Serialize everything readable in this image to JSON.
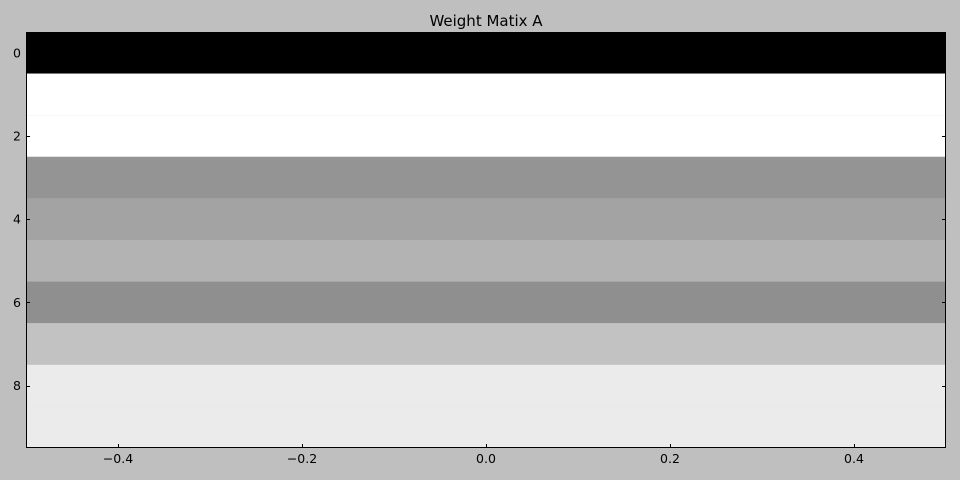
{
  "chart_data": {
    "type": "heatmap",
    "title": "Weight Matix A",
    "colormap": "gray",
    "xlim": [
      -0.5,
      0.5
    ],
    "ylim": [
      9.5,
      -0.5
    ],
    "x_ticks": [
      -0.4,
      -0.2,
      0.0,
      0.2,
      0.4
    ],
    "x_tick_labels": [
      "−0.4",
      "−0.2",
      "0.0",
      "0.2",
      "0.4"
    ],
    "y_ticks": [
      0,
      2,
      4,
      6,
      8
    ],
    "y_tick_labels": [
      "0",
      "2",
      "4",
      "6",
      "8"
    ],
    "rows": [
      0,
      1,
      2,
      3,
      4,
      5,
      6,
      7,
      8,
      9
    ],
    "values": [
      0.0,
      1.0,
      1.0,
      0.58,
      0.64,
      0.7,
      0.56,
      0.76,
      0.92,
      0.92
    ],
    "grid": false
  }
}
